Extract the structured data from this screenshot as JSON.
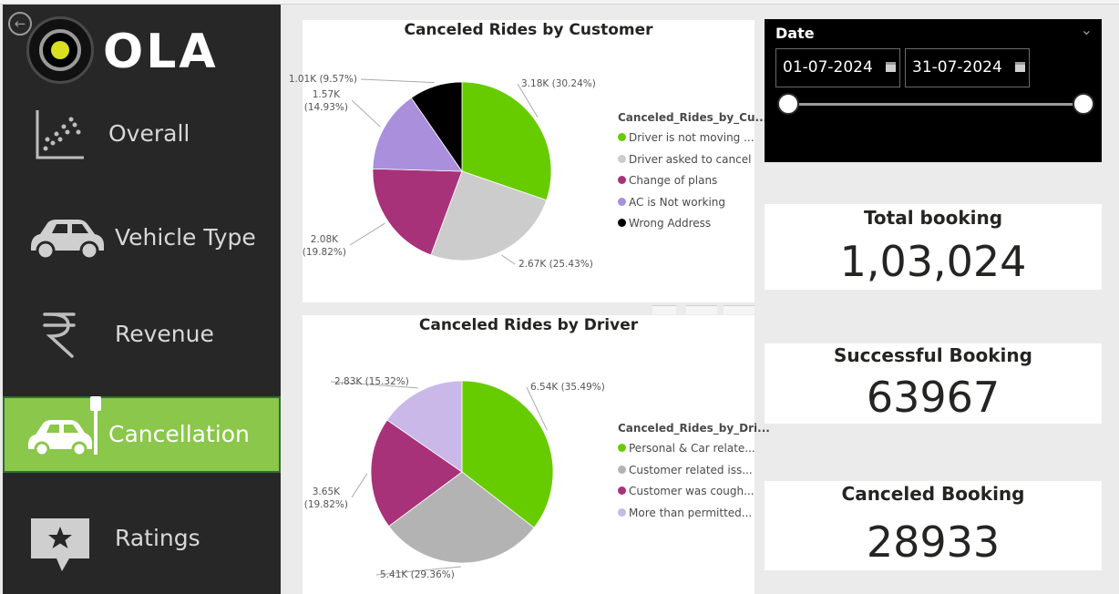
{
  "app": {
    "back_icon": "back-arrow-icon",
    "logo_text": "OLA"
  },
  "sidebar": {
    "items": [
      {
        "label": "Overall",
        "icon": "scatter-chart-icon"
      },
      {
        "label": "Vehicle Type",
        "icon": "car-icon"
      },
      {
        "label": "Revenue",
        "icon": "rupee-icon"
      },
      {
        "label": "Cancellation",
        "icon": "car-crash-icon",
        "active": true
      },
      {
        "label": "Ratings",
        "icon": "star-speech-icon"
      }
    ],
    "active_color": "#8ac74a"
  },
  "date_slicer": {
    "title": "Date",
    "start": "01-07-2024",
    "end": "31-07-2024",
    "range_position": [
      0,
      1
    ]
  },
  "kpis": [
    {
      "title": "Total booking",
      "value": "1,03,024"
    },
    {
      "title": "Successful Booking",
      "value": "63967"
    },
    {
      "title": "Canceled Booking",
      "value": "28933"
    }
  ],
  "chart_data": [
    {
      "type": "pie",
      "title": "Canceled Rides by Customer",
      "legend_title": "Canceled_Rides_by_Cu...",
      "legend_position": "right",
      "slices": [
        {
          "name": "Driver is not moving ...",
          "value": 3.18,
          "percent": 30.24,
          "label": "3.18K (30.24%)",
          "color": "#66cc00"
        },
        {
          "name": "Driver asked to cancel",
          "value": 2.67,
          "percent": 25.43,
          "label": "2.67K (25.43%)",
          "color": "#cccccc"
        },
        {
          "name": "Change of plans",
          "value": 2.08,
          "percent": 19.82,
          "label": "2.08K (19.82%)",
          "color": "#a83279"
        },
        {
          "name": "AC is Not working",
          "value": 1.57,
          "percent": 14.93,
          "label": "1.57K (14.93%)",
          "color": "#a98fdc"
        },
        {
          "name": "Wrong Address",
          "value": 1.01,
          "percent": 9.57,
          "label": "1.01K (9.57%)",
          "color": "#000000"
        }
      ]
    },
    {
      "type": "pie",
      "title": "Canceled Rides by Driver",
      "legend_title": "Canceled_Rides_by_Dri...",
      "legend_position": "right",
      "slices": [
        {
          "name": "Personal & Car relate...",
          "value": 6.54,
          "percent": 35.49,
          "label": "6.54K (35.49%)",
          "color": "#66cc00"
        },
        {
          "name": "Customer related iss...",
          "value": 5.41,
          "percent": 29.36,
          "label": "5.41K (29.36%)",
          "color": "#b3b3b3"
        },
        {
          "name": "Customer was cough...",
          "value": 3.65,
          "percent": 19.82,
          "label": "3.65K (19.82%)",
          "color": "#a83279"
        },
        {
          "name": "More than permitted...",
          "value": 2.83,
          "percent": 15.32,
          "label": "2.83K (15.32%)",
          "color": "#c9b8e8"
        }
      ]
    }
  ]
}
